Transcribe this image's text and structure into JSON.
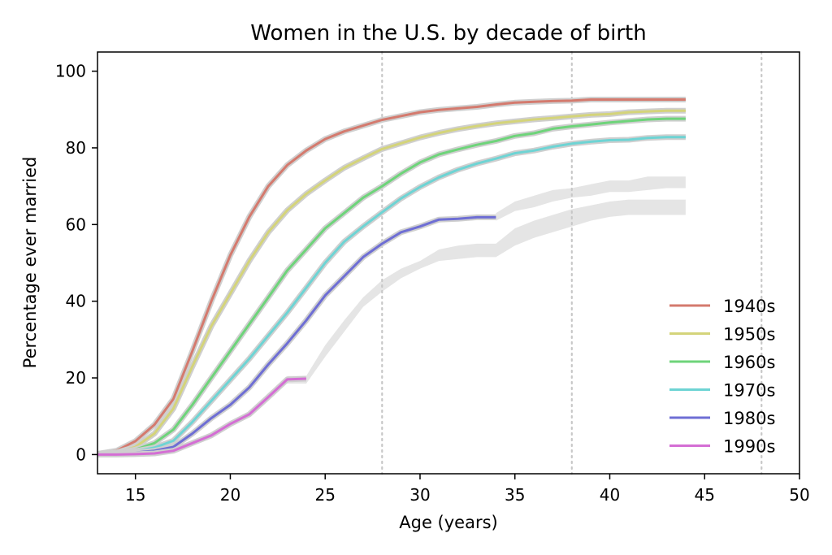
{
  "chart_data": {
    "type": "line",
    "title": "Women in the U.S. by decade of birth",
    "xlabel": "Age (years)",
    "ylabel": "Percentage ever married",
    "xlim": [
      13,
      50
    ],
    "ylim": [
      -5,
      105
    ],
    "xticks": [
      15,
      20,
      25,
      30,
      35,
      40,
      45,
      50
    ],
    "yticks": [
      0,
      20,
      40,
      60,
      80,
      100
    ],
    "vlines": [
      28,
      38,
      48
    ],
    "grid": false,
    "legend_position": "lower-right",
    "series": [
      {
        "name": "1940s",
        "color": "#d47a6e",
        "x": [
          13,
          14,
          15,
          16,
          17,
          18,
          19,
          20,
          21,
          22,
          23,
          24,
          25,
          26,
          27,
          28,
          29,
          30,
          31,
          32,
          33,
          34,
          35,
          36,
          37,
          38,
          39,
          40,
          41,
          42,
          43,
          44
        ],
        "y": [
          0.2,
          1.0,
          3.5,
          7.8,
          14.5,
          27,
          40,
          52,
          62,
          70,
          75.5,
          79.3,
          82.3,
          84.3,
          85.8,
          87.3,
          88.3,
          89.3,
          89.9,
          90.3,
          90.7,
          91.3,
          91.8,
          92.0,
          92.2,
          92.3,
          92.6,
          92.6,
          92.6,
          92.6,
          92.6,
          92.6
        ]
      },
      {
        "name": "1950s",
        "color": "#d4d47a",
        "x": [
          13,
          14,
          15,
          16,
          17,
          18,
          19,
          20,
          21,
          22,
          23,
          24,
          25,
          26,
          27,
          28,
          29,
          30,
          31,
          32,
          33,
          34,
          35,
          36,
          37,
          38,
          39,
          40,
          41,
          42,
          43,
          44
        ],
        "y": [
          0.1,
          0.5,
          2.0,
          5.5,
          12,
          23,
          33.5,
          42,
          50.5,
          58,
          63.7,
          68,
          71.5,
          74.8,
          77.3,
          79.7,
          81.2,
          82.7,
          83.9,
          84.9,
          85.7,
          86.4,
          86.9,
          87.4,
          87.8,
          88.2,
          88.6,
          88.8,
          89.3,
          89.5,
          89.7,
          89.7
        ]
      },
      {
        "name": "1960s",
        "color": "#6ed47a",
        "x": [
          13,
          14,
          15,
          16,
          17,
          18,
          19,
          20,
          21,
          22,
          23,
          24,
          25,
          26,
          27,
          28,
          29,
          30,
          31,
          32,
          33,
          34,
          35,
          36,
          37,
          38,
          39,
          40,
          41,
          42,
          43,
          44
        ],
        "y": [
          0.1,
          0.4,
          1.3,
          3.0,
          6.5,
          13,
          20,
          27,
          34,
          41,
          48,
          53.5,
          59,
          63,
          67,
          70,
          73.3,
          76.2,
          78.3,
          79.6,
          80.8,
          81.8,
          83.1,
          83.8,
          85.0,
          85.6,
          86.1,
          86.6,
          87.0,
          87.4,
          87.6,
          87.6
        ]
      },
      {
        "name": "1970s",
        "color": "#6ed4d4",
        "x": [
          13,
          14,
          15,
          16,
          17,
          18,
          19,
          20,
          21,
          22,
          23,
          24,
          25,
          26,
          27,
          28,
          29,
          30,
          31,
          32,
          33,
          34,
          35,
          36,
          37,
          38,
          39,
          40,
          41,
          42,
          43,
          44
        ],
        "y": [
          0.1,
          0.3,
          0.9,
          1.8,
          3.6,
          8.5,
          14,
          19.5,
          25,
          31,
          37,
          43.5,
          50,
          55.5,
          59.5,
          63.2,
          66.8,
          69.8,
          72.3,
          74.3,
          75.9,
          77.2,
          78.6,
          79.3,
          80.3,
          81.1,
          81.6,
          82.0,
          82.1,
          82.6,
          82.8,
          82.8
        ]
      },
      {
        "name": "1980s",
        "color": "#6e6ed4",
        "x": [
          13,
          14,
          15,
          16,
          17,
          18,
          19,
          20,
          21,
          22,
          23,
          24,
          25,
          26,
          27,
          28,
          29,
          30,
          31,
          32,
          33,
          34
        ],
        "y": [
          0.1,
          0.2,
          0.5,
          1.0,
          2.0,
          5.5,
          9.5,
          13,
          17.5,
          23.5,
          29,
          35,
          41.5,
          46.5,
          51.5,
          55,
          58,
          59.5,
          61.3,
          61.5,
          61.9,
          61.9
        ]
      },
      {
        "name": "1990s",
        "color": "#d46ed4",
        "x": [
          13,
          14,
          15,
          16,
          17,
          18,
          19,
          20,
          21,
          22,
          23,
          24
        ],
        "y": [
          0.0,
          0.0,
          0.1,
          0.3,
          1.0,
          3.0,
          5.0,
          8.0,
          10.5,
          15,
          19.6,
          19.8
        ]
      }
    ],
    "predictions": [
      {
        "x": [
          23,
          24,
          25,
          26,
          27,
          28,
          29,
          30,
          31,
          32,
          33,
          34,
          35,
          36,
          37,
          38,
          39,
          40,
          41,
          42,
          43,
          44
        ],
        "lo": [
          18.5,
          18.5,
          25.5,
          32,
          38.5,
          42.5,
          46,
          48.5,
          50.5,
          51,
          51.5,
          51.5,
          54.5,
          56.5,
          58,
          59.5,
          61,
          62,
          62.5,
          62.5,
          62.5,
          62.5
        ],
        "hi": [
          20.5,
          20.5,
          28.5,
          35,
          41,
          45.5,
          48.5,
          50.5,
          53.5,
          54.5,
          55,
          55,
          59,
          61,
          62.5,
          64,
          65,
          66,
          66.5,
          66.5,
          66.5,
          66.5
        ]
      },
      {
        "x": [
          34,
          35,
          36,
          37,
          38,
          39,
          40,
          41,
          42,
          43,
          44
        ],
        "lo": [
          61,
          63.5,
          64.5,
          66,
          67,
          67.5,
          68.5,
          68.5,
          69,
          69.5,
          69.5
        ],
        "hi": [
          63,
          66,
          67.5,
          69,
          69.5,
          70.5,
          71.5,
          71.5,
          72.5,
          72.5,
          72.5
        ]
      }
    ]
  }
}
